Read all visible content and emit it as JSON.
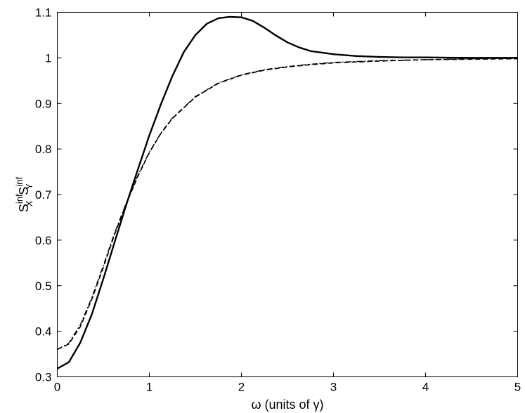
{
  "chart_data": {
    "type": "line",
    "title": "",
    "xlabel": "ω (units of γ)",
    "ylabel": {
      "base1": "S",
      "sup1": "inf",
      "sub1": "X",
      "base2": "S",
      "sup2": "inf",
      "sub2": "Y"
    },
    "xlim": [
      0,
      5
    ],
    "ylim": [
      0.3,
      1.1
    ],
    "xticks": [
      0,
      1,
      2,
      3,
      4,
      5
    ],
    "xtick_labels": [
      "0",
      "1",
      "2",
      "3",
      "4",
      "5"
    ],
    "yticks": [
      0.3,
      0.4,
      0.5,
      0.6,
      0.7,
      0.8,
      0.9,
      1.0,
      1.1
    ],
    "ytick_labels": [
      "0.3",
      "0.4",
      "0.5",
      "0.6",
      "0.7",
      "0.8",
      "0.9",
      "1",
      "1.1"
    ],
    "grid": false,
    "legend": "none",
    "series": [
      {
        "style": "solid",
        "color": "#000000",
        "x": [
          0,
          0.125,
          0.25,
          0.375,
          0.5,
          0.625,
          0.75,
          0.875,
          1.0,
          1.125,
          1.25,
          1.375,
          1.5,
          1.625,
          1.75,
          1.875,
          2.0,
          2.125,
          2.25,
          2.375,
          2.5,
          2.625,
          2.75,
          3.0,
          3.25,
          3.5,
          3.75,
          4.0,
          4.5,
          5.0
        ],
        "y": [
          0.318,
          0.332,
          0.375,
          0.437,
          0.515,
          0.597,
          0.678,
          0.755,
          0.83,
          0.898,
          0.96,
          1.013,
          1.05,
          1.075,
          1.087,
          1.09,
          1.089,
          1.081,
          1.066,
          1.049,
          1.034,
          1.023,
          1.015,
          1.008,
          1.004,
          1.002,
          1.001,
          1.001,
          1.0,
          1.0
        ]
      },
      {
        "style": "dash",
        "color": "#000000",
        "x": [
          0,
          0.125,
          0.25,
          0.375,
          0.5,
          0.625,
          0.75,
          0.875,
          1.0,
          1.125,
          1.25,
          1.5,
          1.75,
          2.0,
          2.25,
          2.5,
          2.75,
          3.0,
          3.5,
          4.0,
          4.5,
          5.0
        ],
        "y": [
          0.36,
          0.372,
          0.41,
          0.47,
          0.54,
          0.614,
          0.68,
          0.74,
          0.792,
          0.834,
          0.867,
          0.914,
          0.944,
          0.962,
          0.973,
          0.98,
          0.985,
          0.989,
          0.993,
          0.996,
          0.997,
          0.998
        ]
      },
      {
        "style": "dashdot",
        "color": "#000000",
        "x": [
          0,
          0.125,
          0.25,
          0.375,
          0.5,
          0.625,
          0.75,
          0.875,
          1.0,
          1.125,
          1.25,
          1.5,
          1.75,
          2.0,
          2.25,
          2.5,
          2.75,
          3.0,
          3.5,
          4.0,
          4.5,
          5.0
        ],
        "y": [
          0.36,
          0.374,
          0.414,
          0.474,
          0.544,
          0.617,
          0.682,
          0.742,
          0.793,
          0.835,
          0.868,
          0.915,
          0.945,
          0.963,
          0.974,
          0.981,
          0.986,
          0.99,
          0.994,
          0.996,
          0.998,
          0.999
        ]
      }
    ]
  }
}
